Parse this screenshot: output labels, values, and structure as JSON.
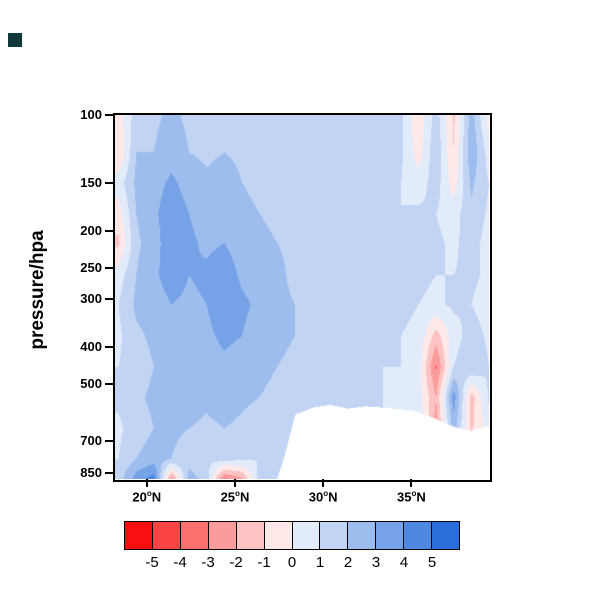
{
  "ui": {
    "corner_mark_color": "#123a3c",
    "background": "#ffffff"
  },
  "chart_data": {
    "type": "heatmap",
    "title": "",
    "xlabel": "",
    "ylabel": "pressure/hpa",
    "x_axis": {
      "min": 18.2,
      "max": 39.4
    },
    "y_axis": {
      "min": 100,
      "max": 880,
      "scale": "log",
      "inverted": true
    },
    "y_ticks": [
      100,
      150,
      200,
      250,
      300,
      400,
      500,
      700,
      850
    ],
    "x_ticks": [
      {
        "num": "20",
        "sup": "o",
        "dir": "N",
        "value": 20
      },
      {
        "num": "25",
        "sup": "o",
        "dir": "N",
        "value": 25
      },
      {
        "num": "30",
        "sup": "o",
        "dir": "N",
        "value": 30
      },
      {
        "num": "35",
        "sup": "o",
        "dir": "N",
        "value": 35
      }
    ],
    "colorbar": {
      "levels": [
        -5,
        -4,
        -3,
        -2,
        -1,
        0,
        1,
        2,
        3,
        4,
        5
      ],
      "colors": [
        "#f80f0f",
        "#fa4343",
        "#fb6f6f",
        "#fc9b9b",
        "#fdc3c3",
        "#fee8e8",
        "#e2ebfa",
        "#c2d4f4",
        "#9dbdee",
        "#76a3e8",
        "#4f88e2",
        "#2a6edc"
      ],
      "position": "bottom"
    },
    "grid": {
      "lats": [
        18.4,
        19.4,
        20.4,
        21.4,
        22.4,
        23.4,
        24.4,
        25.4,
        26.4,
        27.4,
        28.4,
        29.4,
        30.4,
        31.4,
        32.4,
        33.4,
        34.4,
        35.4,
        36.4,
        37.4,
        38.4,
        39.4
      ],
      "pressures": [
        100,
        125,
        150,
        180,
        215,
        260,
        310,
        375,
        450,
        540,
        650,
        780,
        880
      ],
      "values": [
        [
          -0.5,
          1.5,
          1.8,
          2.2,
          1.8,
          1.5,
          1.8,
          1.5,
          1.2,
          1.5,
          1.2,
          1.0,
          1.2,
          1.5,
          1.2,
          1.0,
          1.2,
          -0.8,
          1.5,
          -1.2,
          2.5,
          -0.5
        ],
        [
          -1.0,
          2.0,
          2.0,
          2.6,
          2.0,
          1.8,
          2.0,
          1.8,
          1.5,
          1.5,
          1.2,
          1.2,
          1.5,
          1.5,
          1.2,
          1.2,
          1.2,
          -0.5,
          1.8,
          -1.0,
          2.8,
          0.5
        ],
        [
          0.5,
          2.2,
          2.6,
          3.2,
          2.6,
          2.2,
          2.5,
          2.0,
          1.8,
          1.5,
          1.5,
          1.2,
          1.5,
          1.8,
          1.5,
          1.2,
          1.0,
          0.5,
          1.5,
          -0.5,
          2.2,
          1.0
        ],
        [
          -0.5,
          2.0,
          2.8,
          3.6,
          3.0,
          2.5,
          2.8,
          2.2,
          2.0,
          1.8,
          1.5,
          1.5,
          1.8,
          1.8,
          1.5,
          1.2,
          1.0,
          1.2,
          1.0,
          0.5,
          1.8,
          0.8
        ],
        [
          -1.2,
          1.8,
          2.5,
          3.8,
          3.2,
          2.8,
          3.0,
          2.5,
          2.2,
          2.0,
          1.8,
          1.5,
          1.8,
          2.0,
          1.5,
          1.2,
          1.2,
          1.0,
          1.2,
          0.8,
          1.5,
          0.5
        ],
        [
          0.5,
          2.0,
          2.8,
          3.5,
          3.0,
          3.2,
          3.6,
          2.8,
          2.5,
          2.2,
          1.8,
          1.8,
          2.0,
          1.8,
          1.5,
          1.5,
          1.2,
          1.2,
          1.0,
          1.0,
          1.2,
          0.8
        ],
        [
          1.0,
          2.2,
          2.5,
          3.0,
          2.8,
          3.0,
          3.6,
          3.2,
          2.8,
          2.2,
          2.0,
          1.8,
          1.8,
          1.5,
          1.5,
          1.2,
          1.2,
          1.0,
          0.8,
          1.2,
          1.0,
          0.5
        ],
        [
          0.8,
          1.8,
          2.2,
          2.8,
          2.5,
          2.8,
          3.2,
          3.0,
          2.5,
          2.2,
          2.0,
          1.8,
          1.5,
          1.5,
          1.2,
          1.2,
          1.0,
          0.8,
          -1.5,
          0.5,
          1.5,
          0.8
        ],
        [
          1.0,
          1.5,
          2.0,
          2.5,
          2.8,
          2.5,
          2.8,
          2.5,
          2.2,
          2.0,
          1.8,
          1.5,
          1.5,
          1.2,
          1.2,
          1.0,
          1.0,
          0.5,
          -3.2,
          1.0,
          2.0,
          1.0
        ],
        [
          1.2,
          1.8,
          2.2,
          2.5,
          2.5,
          2.2,
          2.5,
          2.2,
          2.0,
          1.8,
          1.5,
          1.2,
          1.2,
          1.2,
          1.0,
          1.0,
          0.8,
          0.5,
          -2.0,
          3.6,
          -1.5,
          1.2
        ],
        [
          0.8,
          1.5,
          2.0,
          2.2,
          2.0,
          1.8,
          2.0,
          1.8,
          1.5,
          1.5,
          1.2,
          1.0,
          1.0,
          1.0,
          1.0,
          1.0,
          1.0,
          1.0,
          -2.5,
          2.5,
          -1.2,
          0.5
        ],
        [
          1.0,
          2.0,
          2.5,
          2.0,
          1.5,
          1.2,
          1.5,
          1.2,
          1.0,
          1.0,
          1.0,
          1.0,
          1.0,
          1.0,
          1.0,
          1.0,
          1.0,
          1.0,
          1.0,
          1.0,
          1.0,
          1.0
        ],
        [
          1.5,
          3.5,
          4.5,
          -2.5,
          2.5,
          1.5,
          -3.2,
          -2.2,
          1.5,
          1.0,
          1.0,
          1.0,
          1.0,
          1.0,
          1.0,
          1.0,
          1.0,
          1.0,
          1.0,
          1.0,
          1.0,
          1.0
        ]
      ],
      "surface_pressure": [
        880,
        880,
        880,
        880,
        880,
        880,
        880,
        880,
        880,
        880,
        600,
        575,
        565,
        578,
        570,
        575,
        580,
        590,
        615,
        645,
        660,
        640
      ],
      "mask_color": "#ffffff"
    }
  }
}
